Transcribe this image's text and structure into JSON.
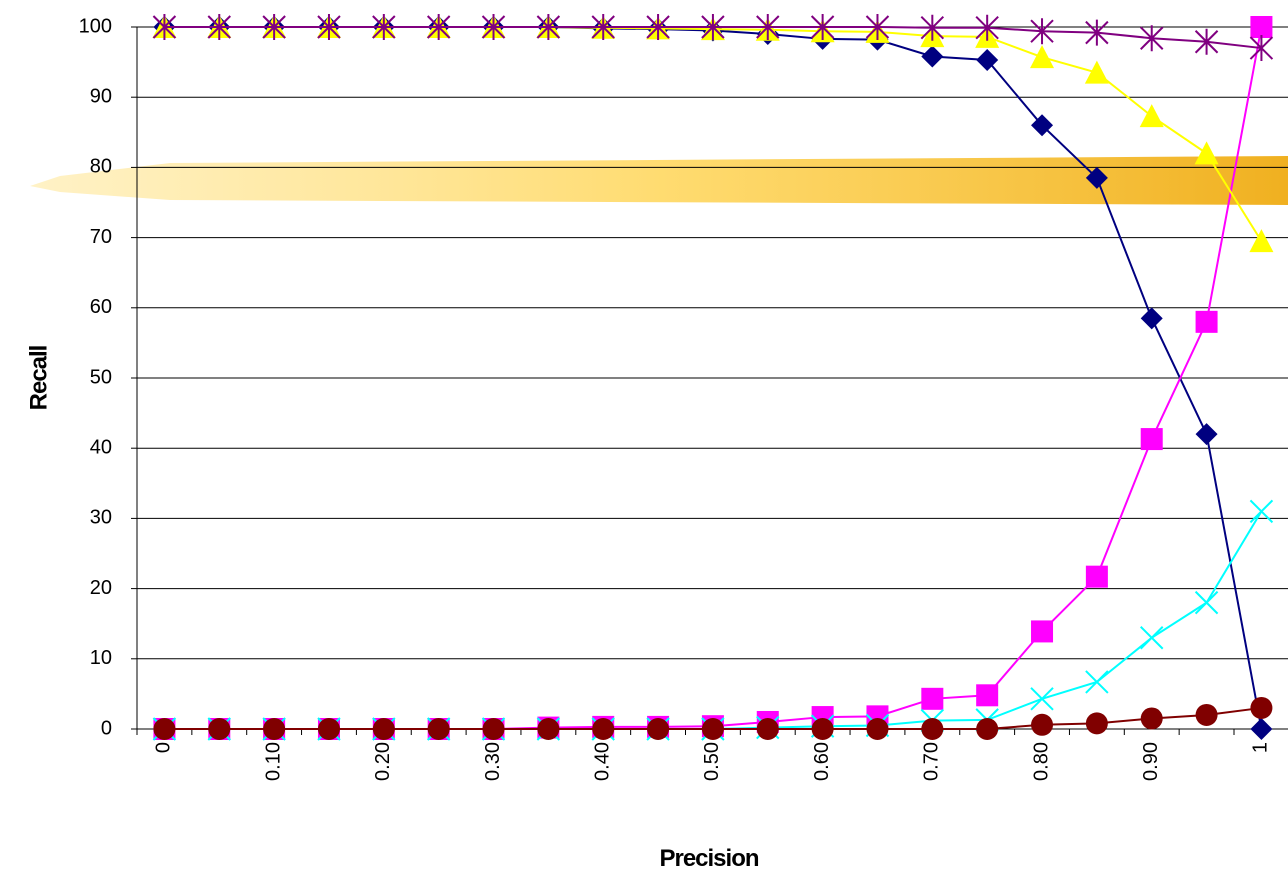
{
  "chart_data": {
    "type": "line",
    "x_label": "Precision",
    "y_label": "Recall",
    "categories": [
      "0",
      null,
      "0.10",
      null,
      "0.20",
      null,
      "0.30",
      null,
      "0.40",
      null,
      "0.50",
      null,
      "0.60",
      null,
      "0.70",
      null,
      "0.80",
      null,
      "0.90",
      null,
      "1"
    ],
    "ylim": [
      0,
      100
    ],
    "yticks": [
      0,
      10,
      20,
      30,
      40,
      50,
      60,
      70,
      80,
      90,
      100
    ],
    "grid": true,
    "series": [
      {
        "color": "#000080",
        "marker": "diamond",
        "values": [
          100,
          100,
          100,
          100,
          100,
          100,
          100,
          100,
          99.8,
          99.7,
          99.5,
          99,
          98.3,
          98.2,
          95.8,
          95.3,
          86,
          78.5,
          58.5,
          42,
          0
        ]
      },
      {
        "color": "#ff00ff",
        "marker": "square",
        "values": [
          0,
          0,
          0,
          0,
          0,
          0,
          0,
          0.2,
          0.3,
          0.3,
          0.4,
          1,
          1.7,
          1.8,
          4.3,
          4.8,
          13.9,
          21.7,
          41.3,
          58,
          100
        ]
      },
      {
        "color": "#ffff00",
        "marker": "triangle",
        "values": [
          100,
          100,
          100,
          100,
          100,
          100,
          100,
          100,
          99.9,
          99.8,
          99.7,
          99.6,
          99.4,
          99.3,
          98.7,
          98.6,
          95.7,
          93.5,
          87.3,
          82,
          69.5
        ]
      },
      {
        "color": "#00ffff",
        "marker": "x",
        "values": [
          0,
          0,
          0,
          0,
          0,
          0,
          0,
          0,
          0,
          0,
          0,
          0.2,
          0.4,
          0.5,
          1.2,
          1.3,
          4.3,
          6.7,
          13,
          18,
          31
        ]
      },
      {
        "color": "#800080",
        "marker": "asterisk",
        "values": [
          100,
          100,
          100,
          100,
          100,
          100,
          100,
          100,
          100,
          100,
          100,
          100,
          100,
          100,
          99.9,
          99.9,
          99.4,
          99.2,
          98.4,
          97.9,
          97
        ]
      },
      {
        "color": "#800000",
        "marker": "circle",
        "values": [
          0,
          0,
          0,
          0,
          0,
          0,
          0,
          0,
          0,
          0,
          0,
          0,
          0,
          0,
          0,
          0,
          0.6,
          0.8,
          1.5,
          2,
          3
        ]
      }
    ]
  }
}
